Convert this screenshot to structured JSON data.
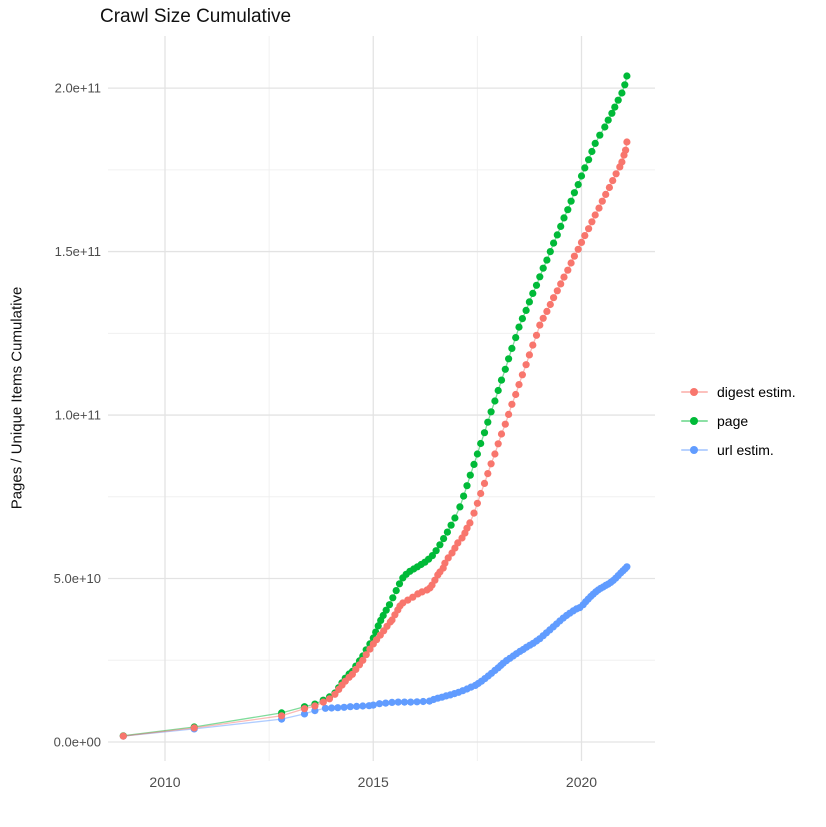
{
  "chart_data": {
    "type": "scatter",
    "title": "Crawl Size Cumulative",
    "xlabel": "",
    "ylabel": "Pages / Unique Items Cumulative",
    "x_ticks": {
      "values": [
        2010,
        2015,
        2020
      ],
      "labels": [
        "2010",
        "2015",
        "2020"
      ],
      "minor": [
        2012.5,
        2017.5
      ]
    },
    "y_ticks": {
      "values_e9": [
        0,
        50,
        100,
        150,
        200
      ],
      "labels": [
        "0.0e+00",
        "5.0e+10",
        "1.0e+11",
        "1.5e+11",
        "2.0e+11"
      ],
      "minor_e9": [
        25,
        75,
        125,
        175
      ]
    },
    "xlim": [
      2008.6,
      2021.8
    ],
    "ylim_e9": [
      -4,
      215
    ],
    "units": "cumulative pages / unique items, values in billions (1e9)",
    "grid": "white panel, light gray major and minor gridlines, no axis lines",
    "legend_position": "right-center",
    "series": [
      {
        "name": "digest estim.",
        "color": "#F8766D",
        "points": [
          [
            2009.0,
            1.8
          ],
          [
            2010.7,
            4.3
          ],
          [
            2012.8,
            8.0
          ],
          [
            2013.35,
            10.2
          ],
          [
            2013.6,
            11.0
          ],
          [
            2013.8,
            12.2
          ],
          [
            2013.95,
            13.2
          ],
          [
            2014.08,
            14.6
          ],
          [
            2014.17,
            16.1
          ],
          [
            2014.25,
            17.4
          ],
          [
            2014.33,
            18.6
          ],
          [
            2014.42,
            19.8
          ],
          [
            2014.5,
            20.7
          ],
          [
            2014.58,
            22.2
          ],
          [
            2014.67,
            23.6
          ],
          [
            2014.75,
            25.0
          ],
          [
            2014.83,
            26.7
          ],
          [
            2014.92,
            28.4
          ],
          [
            2015.0,
            30.0
          ],
          [
            2015.08,
            31.3
          ],
          [
            2015.17,
            32.7
          ],
          [
            2015.25,
            34.0
          ],
          [
            2015.33,
            35.4
          ],
          [
            2015.41,
            36.7
          ],
          [
            2015.45,
            37.3
          ],
          [
            2015.52,
            38.9
          ],
          [
            2015.59,
            40.4
          ],
          [
            2015.64,
            41.6
          ],
          [
            2015.71,
            42.5
          ],
          [
            2015.83,
            43.4
          ],
          [
            2015.95,
            44.3
          ],
          [
            2016.07,
            45.3
          ],
          [
            2016.17,
            45.9
          ],
          [
            2016.29,
            46.5
          ],
          [
            2016.36,
            47.1
          ],
          [
            2016.41,
            48.0
          ],
          [
            2016.48,
            49.5
          ],
          [
            2016.55,
            51.1
          ],
          [
            2016.6,
            52.0
          ],
          [
            2016.68,
            53.2
          ],
          [
            2016.72,
            54.7
          ],
          [
            2016.8,
            56.3
          ],
          [
            2016.89,
            57.8
          ],
          [
            2016.96,
            59.3
          ],
          [
            2017.03,
            60.9
          ],
          [
            2017.13,
            62.4
          ],
          [
            2017.2,
            63.9
          ],
          [
            2017.25,
            65.4
          ],
          [
            2017.32,
            67.0
          ],
          [
            2017.42,
            70.0
          ],
          [
            2017.5,
            73.0
          ],
          [
            2017.58,
            76.0
          ],
          [
            2017.67,
            79.1
          ],
          [
            2017.75,
            82.1
          ],
          [
            2017.83,
            85.1
          ],
          [
            2017.92,
            88.1
          ],
          [
            2018.0,
            91.2
          ],
          [
            2018.08,
            94.2
          ],
          [
            2018.17,
            97.2
          ],
          [
            2018.25,
            100.2
          ],
          [
            2018.33,
            103.3
          ],
          [
            2018.42,
            106.3
          ],
          [
            2018.5,
            109.3
          ],
          [
            2018.58,
            112.3
          ],
          [
            2018.67,
            115.4
          ],
          [
            2018.75,
            118.4
          ],
          [
            2018.83,
            121.4
          ],
          [
            2018.92,
            124.4
          ],
          [
            2019.0,
            127.5
          ],
          [
            2019.08,
            129.6
          ],
          [
            2019.17,
            131.7
          ],
          [
            2019.25,
            133.8
          ],
          [
            2019.33,
            135.9
          ],
          [
            2019.42,
            138.0
          ],
          [
            2019.5,
            140.1
          ],
          [
            2019.58,
            142.2
          ],
          [
            2019.67,
            144.3
          ],
          [
            2019.75,
            146.5
          ],
          [
            2019.83,
            148.6
          ],
          [
            2019.92,
            150.7
          ],
          [
            2020.0,
            152.8
          ],
          [
            2020.08,
            154.9
          ],
          [
            2020.17,
            157.0
          ],
          [
            2020.25,
            159.1
          ],
          [
            2020.33,
            161.2
          ],
          [
            2020.42,
            163.3
          ],
          [
            2020.5,
            165.4
          ],
          [
            2020.58,
            167.5
          ],
          [
            2020.67,
            169.6
          ],
          [
            2020.75,
            171.7
          ],
          [
            2020.83,
            173.8
          ],
          [
            2020.92,
            175.9
          ],
          [
            2020.97,
            177.4
          ],
          [
            2021.02,
            179.5
          ],
          [
            2021.06,
            181.0
          ],
          [
            2021.09,
            183.5
          ]
        ]
      },
      {
        "name": "page",
        "color": "#00BA38",
        "points": [
          [
            2009.0,
            1.9
          ],
          [
            2010.7,
            4.6
          ],
          [
            2012.8,
            8.9
          ],
          [
            2013.35,
            10.8
          ],
          [
            2013.6,
            11.6
          ],
          [
            2013.8,
            12.8
          ],
          [
            2013.95,
            13.8
          ],
          [
            2014.08,
            15.0
          ],
          [
            2014.17,
            16.6
          ],
          [
            2014.25,
            18.1
          ],
          [
            2014.33,
            19.5
          ],
          [
            2014.42,
            20.8
          ],
          [
            2014.5,
            21.6
          ],
          [
            2014.58,
            23.2
          ],
          [
            2014.67,
            24.8
          ],
          [
            2014.75,
            26.3
          ],
          [
            2014.83,
            28.2
          ],
          [
            2014.92,
            30.0
          ],
          [
            2015.0,
            31.8
          ],
          [
            2015.06,
            33.6
          ],
          [
            2015.12,
            35.5
          ],
          [
            2015.18,
            37.2
          ],
          [
            2015.24,
            38.7
          ],
          [
            2015.31,
            40.3
          ],
          [
            2015.39,
            42.0
          ],
          [
            2015.47,
            44.1
          ],
          [
            2015.55,
            46.3
          ],
          [
            2015.63,
            48.4
          ],
          [
            2015.71,
            50.2
          ],
          [
            2015.79,
            51.3
          ],
          [
            2015.88,
            52.2
          ],
          [
            2015.97,
            52.9
          ],
          [
            2016.06,
            53.6
          ],
          [
            2016.15,
            54.3
          ],
          [
            2016.24,
            55.0
          ],
          [
            2016.33,
            55.9
          ],
          [
            2016.42,
            57.0
          ],
          [
            2016.51,
            58.5
          ],
          [
            2016.6,
            60.3
          ],
          [
            2016.69,
            62.2
          ],
          [
            2016.78,
            64.2
          ],
          [
            2016.87,
            66.3
          ],
          [
            2016.96,
            68.5
          ],
          [
            2017.08,
            71.9
          ],
          [
            2017.17,
            75.2
          ],
          [
            2017.25,
            78.4
          ],
          [
            2017.33,
            81.6
          ],
          [
            2017.42,
            84.9
          ],
          [
            2017.5,
            88.1
          ],
          [
            2017.58,
            91.3
          ],
          [
            2017.67,
            94.6
          ],
          [
            2017.75,
            97.8
          ],
          [
            2017.83,
            101.0
          ],
          [
            2017.92,
            104.3
          ],
          [
            2018.0,
            107.5
          ],
          [
            2018.08,
            110.7
          ],
          [
            2018.17,
            114.0
          ],
          [
            2018.25,
            117.2
          ],
          [
            2018.33,
            120.4
          ],
          [
            2018.42,
            123.7
          ],
          [
            2018.5,
            126.9
          ],
          [
            2018.58,
            129.5
          ],
          [
            2018.67,
            132.0
          ],
          [
            2018.75,
            134.6
          ],
          [
            2018.83,
            137.2
          ],
          [
            2018.92,
            139.7
          ],
          [
            2019.0,
            142.3
          ],
          [
            2019.08,
            144.9
          ],
          [
            2019.17,
            147.4
          ],
          [
            2019.25,
            150.0
          ],
          [
            2019.33,
            152.6
          ],
          [
            2019.42,
            155.1
          ],
          [
            2019.5,
            157.7
          ],
          [
            2019.58,
            160.3
          ],
          [
            2019.67,
            162.8
          ],
          [
            2019.75,
            165.4
          ],
          [
            2019.83,
            168.0
          ],
          [
            2019.92,
            170.5
          ],
          [
            2020.0,
            173.1
          ],
          [
            2020.08,
            175.6
          ],
          [
            2020.17,
            178.1
          ],
          [
            2020.25,
            180.6
          ],
          [
            2020.33,
            183.1
          ],
          [
            2020.44,
            185.6
          ],
          [
            2020.56,
            188.1
          ],
          [
            2020.64,
            190.2
          ],
          [
            2020.73,
            192.3
          ],
          [
            2020.8,
            194.2
          ],
          [
            2020.88,
            196.3
          ],
          [
            2020.97,
            198.5
          ],
          [
            2021.04,
            201.0
          ],
          [
            2021.09,
            203.7
          ]
        ]
      },
      {
        "name": "url estim.",
        "color": "#619CFF",
        "points": [
          [
            2009.0,
            1.8
          ],
          [
            2010.7,
            4.0
          ],
          [
            2012.8,
            7.0
          ],
          [
            2013.35,
            8.6
          ],
          [
            2013.6,
            9.6
          ],
          [
            2013.85,
            10.3
          ],
          [
            2014.0,
            10.4
          ],
          [
            2014.15,
            10.5
          ],
          [
            2014.3,
            10.6
          ],
          [
            2014.45,
            10.8
          ],
          [
            2014.6,
            10.9
          ],
          [
            2014.75,
            11.0
          ],
          [
            2014.9,
            11.1
          ],
          [
            2015.0,
            11.3
          ],
          [
            2015.15,
            11.7
          ],
          [
            2015.3,
            11.9
          ],
          [
            2015.45,
            12.1
          ],
          [
            2015.6,
            12.2
          ],
          [
            2015.75,
            12.2
          ],
          [
            2015.9,
            12.2
          ],
          [
            2016.05,
            12.3
          ],
          [
            2016.2,
            12.4
          ],
          [
            2016.35,
            12.5
          ],
          [
            2016.45,
            13.0
          ],
          [
            2016.55,
            13.4
          ],
          [
            2016.65,
            13.7
          ],
          [
            2016.75,
            14.1
          ],
          [
            2016.85,
            14.4
          ],
          [
            2016.95,
            14.8
          ],
          [
            2017.05,
            15.2
          ],
          [
            2017.15,
            15.7
          ],
          [
            2017.25,
            16.2
          ],
          [
            2017.35,
            16.8
          ],
          [
            2017.45,
            17.3
          ],
          [
            2017.52,
            17.9
          ],
          [
            2017.6,
            18.6
          ],
          [
            2017.68,
            19.4
          ],
          [
            2017.76,
            20.2
          ],
          [
            2017.84,
            21.0
          ],
          [
            2017.92,
            21.9
          ],
          [
            2018.0,
            22.7
          ],
          [
            2018.06,
            23.4
          ],
          [
            2018.12,
            24.1
          ],
          [
            2018.2,
            24.9
          ],
          [
            2018.28,
            25.6
          ],
          [
            2018.36,
            26.3
          ],
          [
            2018.44,
            27.0
          ],
          [
            2018.52,
            27.7
          ],
          [
            2018.6,
            28.3
          ],
          [
            2018.68,
            29.0
          ],
          [
            2018.76,
            29.6
          ],
          [
            2018.84,
            30.2
          ],
          [
            2018.92,
            30.9
          ],
          [
            2019.0,
            31.6
          ],
          [
            2019.08,
            32.5
          ],
          [
            2019.16,
            33.4
          ],
          [
            2019.24,
            34.3
          ],
          [
            2019.32,
            35.2
          ],
          [
            2019.4,
            36.1
          ],
          [
            2019.48,
            37.0
          ],
          [
            2019.56,
            37.9
          ],
          [
            2019.64,
            38.7
          ],
          [
            2019.72,
            39.4
          ],
          [
            2019.8,
            40.1
          ],
          [
            2019.88,
            40.7
          ],
          [
            2019.96,
            41.1
          ],
          [
            2020.04,
            42.0
          ],
          [
            2020.1,
            42.9
          ],
          [
            2020.16,
            43.7
          ],
          [
            2020.22,
            44.5
          ],
          [
            2020.28,
            45.2
          ],
          [
            2020.34,
            45.9
          ],
          [
            2020.4,
            46.5
          ],
          [
            2020.46,
            47.0
          ],
          [
            2020.52,
            47.4
          ],
          [
            2020.58,
            47.9
          ],
          [
            2020.64,
            48.3
          ],
          [
            2020.7,
            48.8
          ],
          [
            2020.76,
            49.4
          ],
          [
            2020.82,
            50.1
          ],
          [
            2020.88,
            50.9
          ],
          [
            2020.94,
            51.7
          ],
          [
            2021.0,
            52.4
          ],
          [
            2021.05,
            53.0
          ],
          [
            2021.09,
            53.6
          ]
        ]
      }
    ]
  }
}
